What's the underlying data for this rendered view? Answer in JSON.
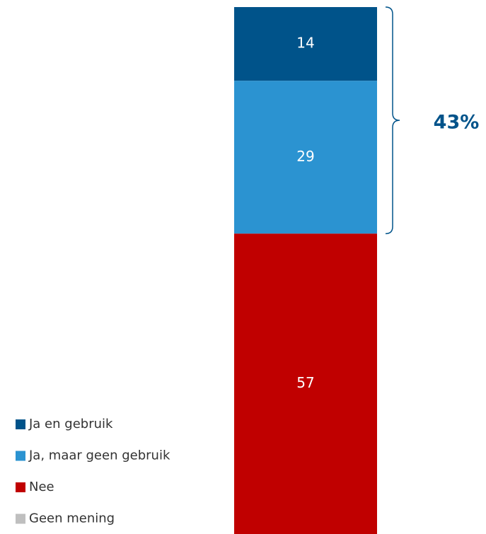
{
  "chart_data": {
    "type": "stacked-bar",
    "categories": [
      null
    ],
    "series": [
      {
        "name": "Ja en gebruik",
        "color": "#00538a",
        "values": [
          14
        ]
      },
      {
        "name": "Ja, maar geen gebruik",
        "color": "#2b93d1",
        "values": [
          29
        ]
      },
      {
        "name": "Nee",
        "color": "#c00000",
        "values": [
          57
        ]
      },
      {
        "name": "Geen mening",
        "color": "#bfbfbf",
        "values": [
          0
        ]
      }
    ],
    "ylim": [
      0,
      100
    ],
    "annotation": "43%",
    "legend": "bottom-left"
  }
}
